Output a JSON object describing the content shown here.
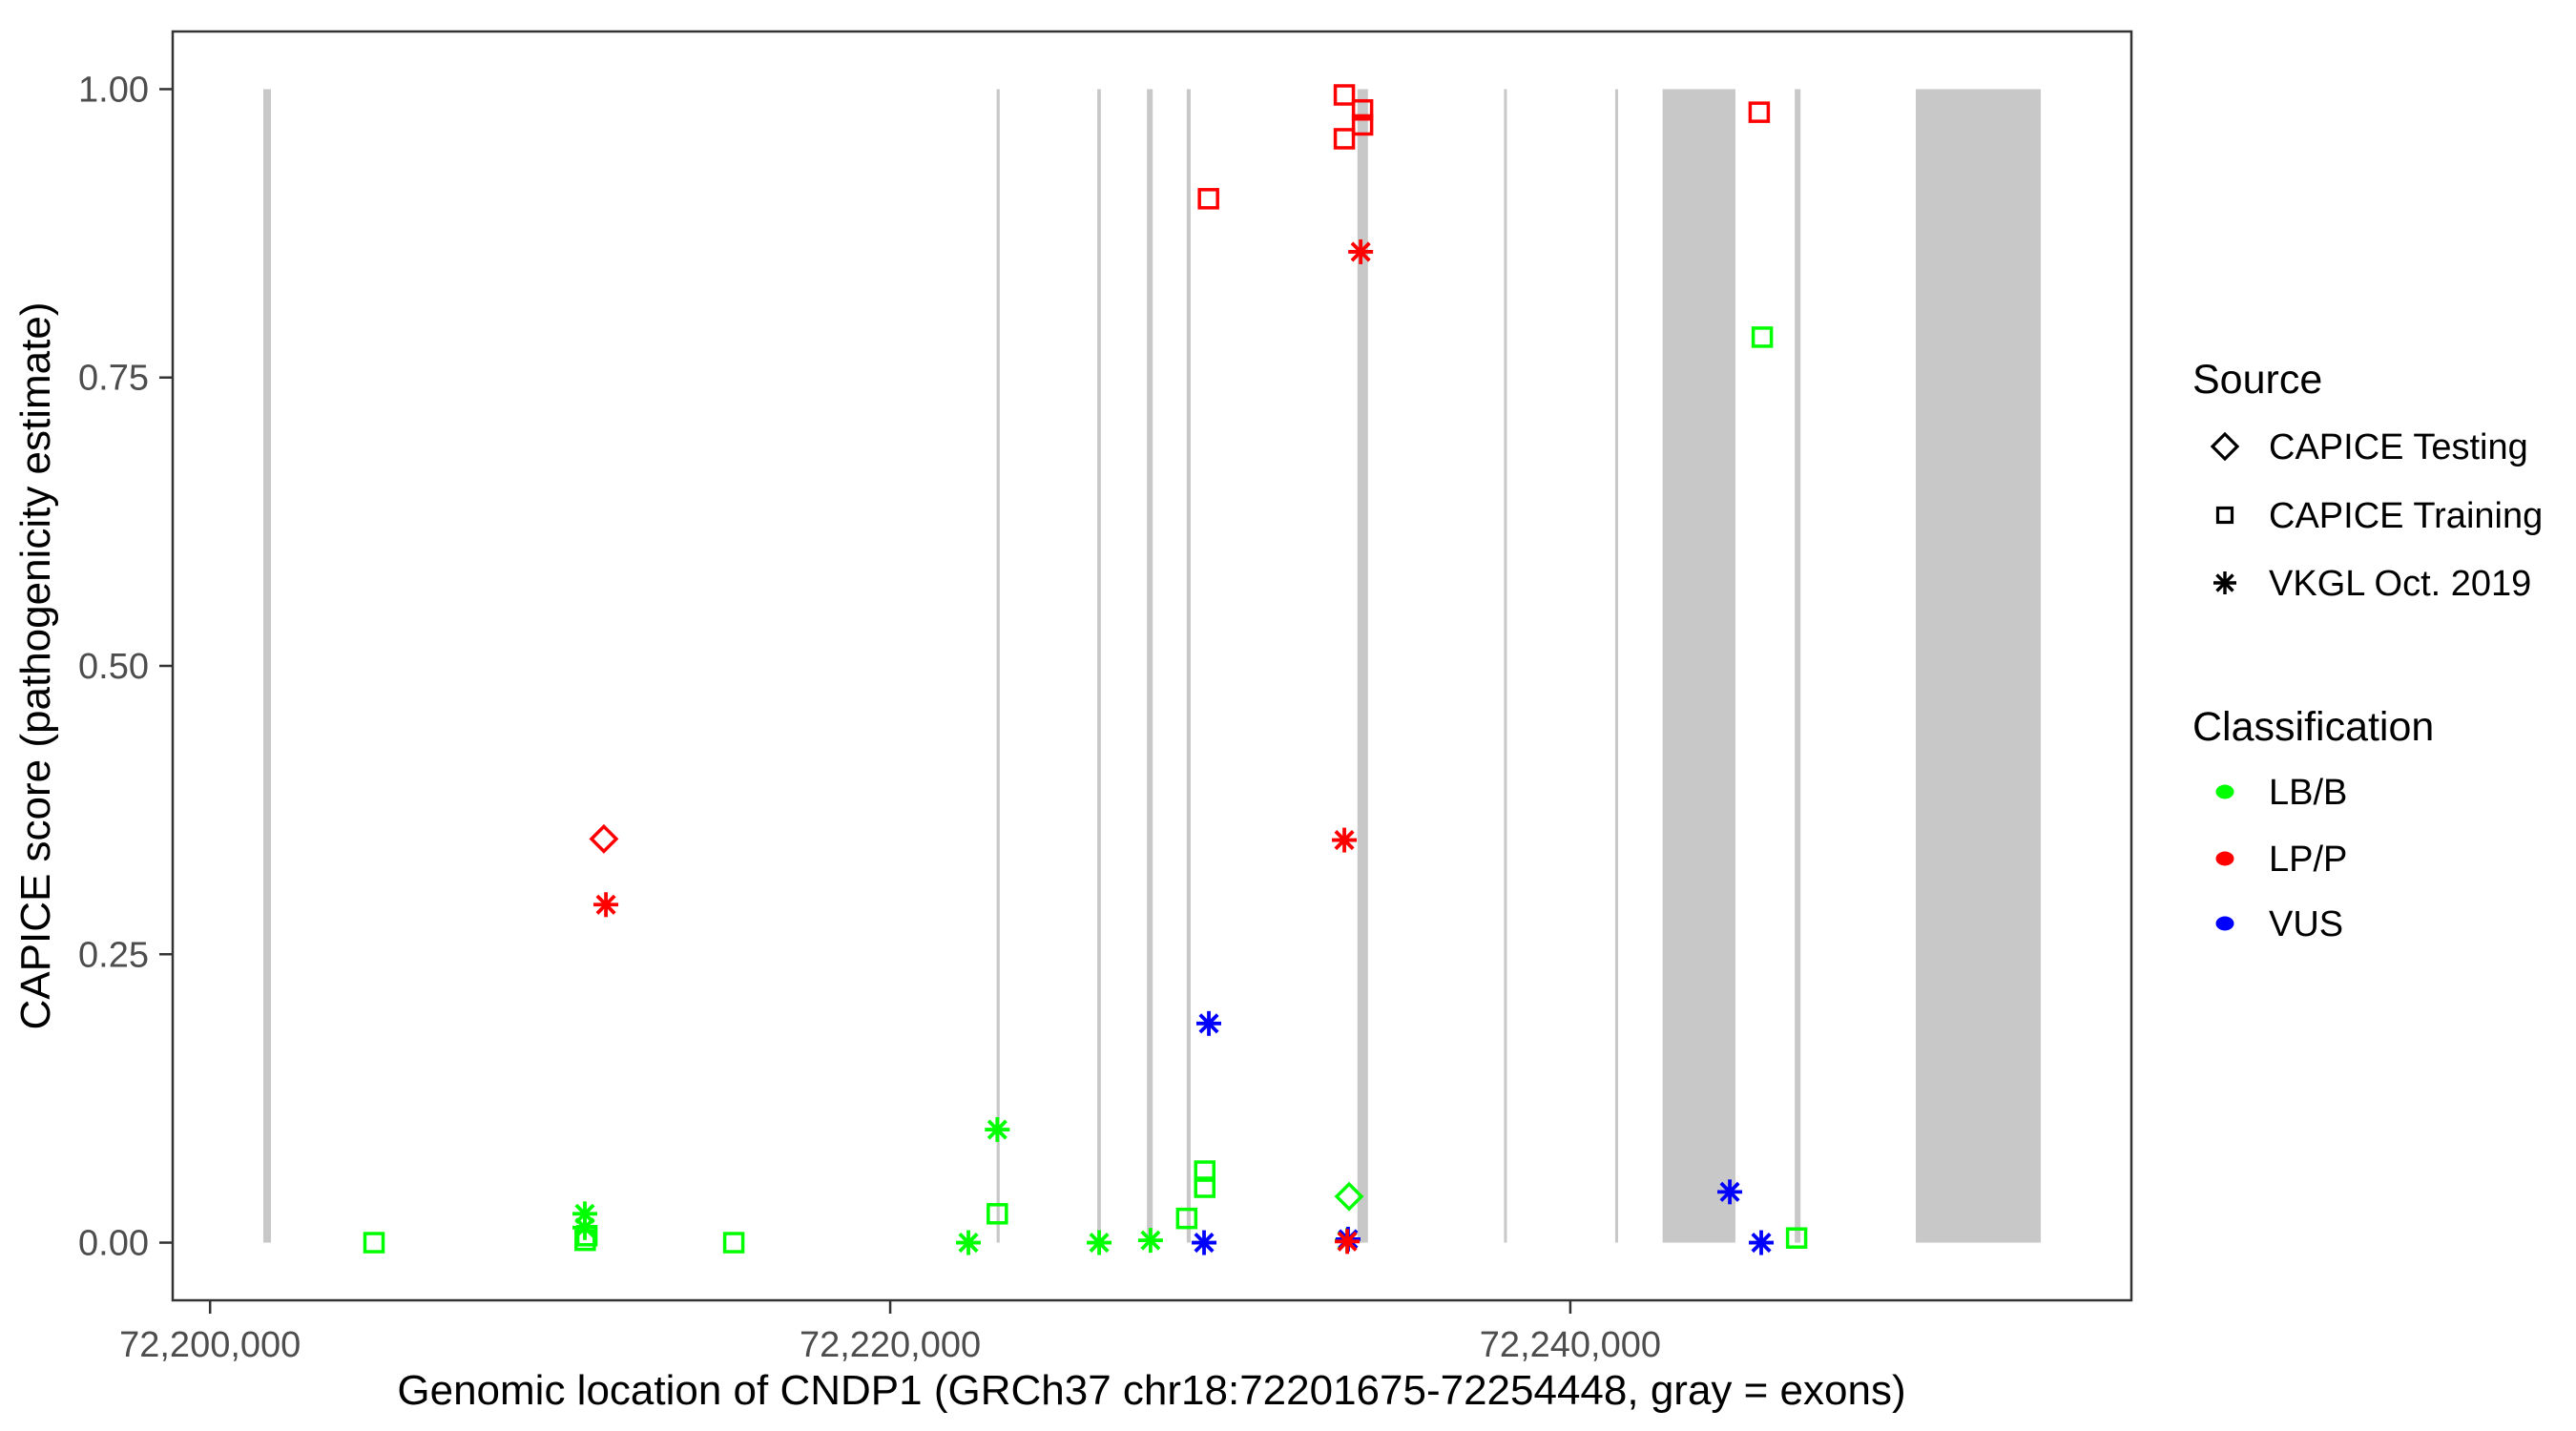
{
  "chart_data": {
    "type": "scatter",
    "title": "",
    "xlabel": "Genomic location of CNDP1 (GRCh37 chr18:72201675-72254448, gray = exons)",
    "ylabel": "CAPICE score (pathogenicity estimate)",
    "xlim": [
      72198900,
      72256500
    ],
    "ylim": [
      -0.05,
      1.05
    ],
    "grid": false,
    "x_ticks": [
      {
        "value": 72200000,
        "label": "72,200,000"
      },
      {
        "value": 72220000,
        "label": "72,220,000"
      },
      {
        "value": 72240000,
        "label": "72,240,000"
      }
    ],
    "y_ticks": [
      {
        "value": 0.0,
        "label": "0.00"
      },
      {
        "value": 0.25,
        "label": "0.25"
      },
      {
        "value": 0.5,
        "label": "0.50"
      },
      {
        "value": 0.75,
        "label": "0.75"
      },
      {
        "value": 1.0,
        "label": "1.00"
      }
    ],
    "exon_note": "gray vertical bands are exons, drawn from score 0 to score 1",
    "exons_bp": [
      [
        72201565,
        72201790
      ],
      [
        72223130,
        72223220
      ],
      [
        72226090,
        72226195
      ],
      [
        72227550,
        72227720
      ],
      [
        72228720,
        72228835
      ],
      [
        72233740,
        72234050
      ],
      [
        72238050,
        72238135
      ],
      [
        72241320,
        72241405
      ],
      [
        72242715,
        72244855
      ],
      [
        72246600,
        72246770
      ],
      [
        72250160,
        72253835
      ]
    ],
    "colors": {
      "LB/B": "#00ff00",
      "LP/P": "#ff0000",
      "VUS": "#0000ff",
      "exon": "#c8c8c8",
      "axis_text": "#4d4d4d",
      "axis_line": "#333333"
    },
    "shape_by_source": {
      "CAPICE Testing": "diamond",
      "CAPICE Training": "square",
      "VKGL Oct. 2019": "asterisk"
    },
    "points": [
      {
        "bp": 72204820,
        "score": 0.0,
        "source": "CAPICE Training",
        "classification": "LB/B"
      },
      {
        "bp": 72211020,
        "score": 0.025,
        "source": "VKGL Oct. 2019",
        "classification": "LB/B"
      },
      {
        "bp": 72211020,
        "score": 0.013,
        "source": "VKGL Oct. 2019",
        "classification": "LB/B"
      },
      {
        "bp": 72211030,
        "score": 0.002,
        "source": "CAPICE Training",
        "classification": "LB/B"
      },
      {
        "bp": 72211080,
        "score": 0.006,
        "source": "CAPICE Training",
        "classification": "LB/B"
      },
      {
        "bp": 72215400,
        "score": 0.0,
        "source": "CAPICE Training",
        "classification": "LB/B"
      },
      {
        "bp": 72222300,
        "score": 0.0,
        "source": "VKGL Oct. 2019",
        "classification": "LB/B"
      },
      {
        "bp": 72223150,
        "score": 0.098,
        "source": "VKGL Oct. 2019",
        "classification": "LB/B"
      },
      {
        "bp": 72223150,
        "score": 0.025,
        "source": "CAPICE Training",
        "classification": "LB/B"
      },
      {
        "bp": 72226145,
        "score": 0.0,
        "source": "VKGL Oct. 2019",
        "classification": "LB/B"
      },
      {
        "bp": 72227655,
        "score": 0.002,
        "source": "VKGL Oct. 2019",
        "classification": "LB/B"
      },
      {
        "bp": 72228720,
        "score": 0.021,
        "source": "CAPICE Training",
        "classification": "LB/B"
      },
      {
        "bp": 72229250,
        "score": 0.062,
        "source": "CAPICE Training",
        "classification": "LB/B"
      },
      {
        "bp": 72229250,
        "score": 0.048,
        "source": "CAPICE Training",
        "classification": "LB/B"
      },
      {
        "bp": 72233495,
        "score": 0.04,
        "source": "CAPICE Testing",
        "classification": "LB/B"
      },
      {
        "bp": 72233440,
        "score": 0.002,
        "source": "VKGL Oct. 2019",
        "classification": "LB/B"
      },
      {
        "bp": 72245645,
        "score": 0.785,
        "source": "CAPICE Training",
        "classification": "LB/B"
      },
      {
        "bp": 72246655,
        "score": 0.004,
        "source": "CAPICE Training",
        "classification": "LB/B"
      },
      {
        "bp": 72229230,
        "score": 0.0,
        "source": "VKGL Oct. 2019",
        "classification": "VUS"
      },
      {
        "bp": 72229370,
        "score": 0.19,
        "source": "VKGL Oct. 2019",
        "classification": "VUS"
      },
      {
        "bp": 72233465,
        "score": 0.003,
        "source": "VKGL Oct. 2019",
        "classification": "VUS"
      },
      {
        "bp": 72244690,
        "score": 0.044,
        "source": "VKGL Oct. 2019",
        "classification": "VUS"
      },
      {
        "bp": 72245615,
        "score": 0.0,
        "source": "VKGL Oct. 2019",
        "classification": "VUS"
      },
      {
        "bp": 72211580,
        "score": 0.35,
        "source": "CAPICE Testing",
        "classification": "LP/P"
      },
      {
        "bp": 72211640,
        "score": 0.293,
        "source": "VKGL Oct. 2019",
        "classification": "LP/P"
      },
      {
        "bp": 72229360,
        "score": 0.905,
        "source": "CAPICE Training",
        "classification": "LP/P"
      },
      {
        "bp": 72233355,
        "score": 0.995,
        "source": "CAPICE Training",
        "classification": "LP/P"
      },
      {
        "bp": 72233890,
        "score": 0.982,
        "source": "CAPICE Training",
        "classification": "LP/P"
      },
      {
        "bp": 72233890,
        "score": 0.969,
        "source": "CAPICE Training",
        "classification": "LP/P"
      },
      {
        "bp": 72233355,
        "score": 0.957,
        "source": "CAPICE Training",
        "classification": "LP/P"
      },
      {
        "bp": 72233835,
        "score": 0.859,
        "source": "VKGL Oct. 2019",
        "classification": "LP/P"
      },
      {
        "bp": 72233355,
        "score": 0.349,
        "source": "VKGL Oct. 2019",
        "classification": "LP/P"
      },
      {
        "bp": 72233440,
        "score": 0.001,
        "source": "VKGL Oct. 2019",
        "classification": "LP/P"
      },
      {
        "bp": 72245555,
        "score": 0.98,
        "source": "CAPICE Training",
        "classification": "LP/P"
      }
    ],
    "legend": {
      "source": {
        "title": "Source",
        "items": [
          {
            "label": "CAPICE Testing",
            "shape": "diamond"
          },
          {
            "label": "CAPICE Training",
            "shape": "square"
          },
          {
            "label": "VKGL Oct. 2019",
            "shape": "asterisk"
          }
        ]
      },
      "classification": {
        "title": "Classification",
        "items": [
          {
            "label": "LB/B",
            "color": "#00ff00"
          },
          {
            "label": "LP/P",
            "color": "#ff0000"
          },
          {
            "label": "VUS",
            "color": "#0000ff"
          }
        ]
      }
    }
  }
}
